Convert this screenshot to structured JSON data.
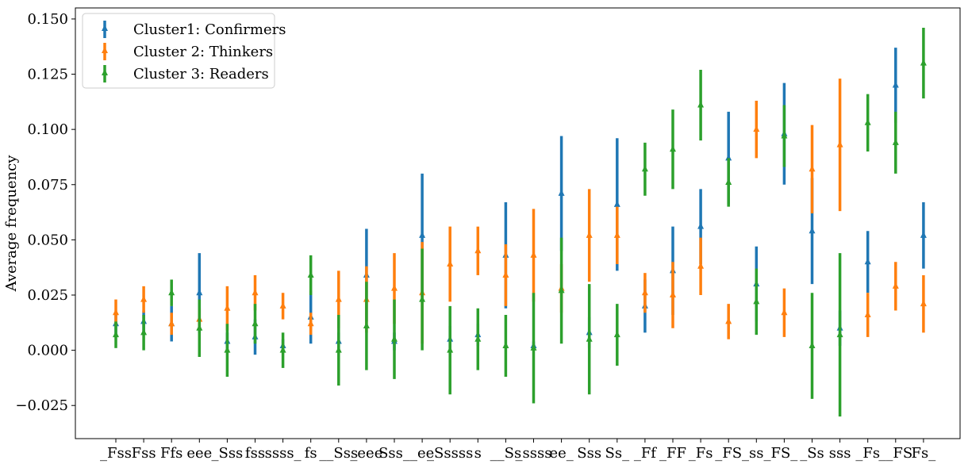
{
  "chart_data": {
    "type": "errorbar",
    "title": "",
    "xlabel": "",
    "ylabel": "Average frequency",
    "ylim": [
      -0.04,
      0.155
    ],
    "yticks": [
      -0.025,
      0.0,
      0.025,
      0.05,
      0.075,
      0.1,
      0.125,
      0.15
    ],
    "ytick_labels": [
      "−0.025",
      "0.000",
      "0.025",
      "0.050",
      "0.075",
      "0.100",
      "0.125",
      "0.150"
    ],
    "grid": false,
    "legend_position": "top-left",
    "categories": [
      "_Fss",
      "Fss",
      "Ffs",
      "eee_",
      "Sss",
      "fss",
      "ssss_",
      "fs__",
      "Sss_",
      "eee",
      "Sss_",
      "_ee",
      "_Ssss",
      "ss__",
      "Ss_",
      "ssss",
      "ee_",
      "Sss",
      "Ss_",
      "_Ff",
      "_FF",
      "_Fs_",
      "FS_",
      "ss_",
      "FS_",
      "_Ss",
      "sss",
      "_Fs__",
      "FS",
      "Fs_"
    ],
    "x_tick_labels": [
      "_Fss",
      "Fss",
      "Ffs",
      "eee",
      "_Sss",
      "fss",
      "ssss_",
      "fs",
      "__Sss",
      "_eee",
      "Sss_",
      "_ee",
      "_Sssss",
      "s",
      "__Ss",
      "_ssss",
      "ee_",
      "Sss",
      "Ss_",
      "_Ff",
      "_FF",
      "_Fs",
      "_FS",
      "_ss_",
      "FS_",
      "_Ss",
      "sss",
      "_Fs",
      "__FS",
      "Fs_"
    ],
    "series": [
      {
        "name": "Cluster1: Confirmers",
        "color": "#1f77b4",
        "values": [
          0.012,
          0.013,
          0.012,
          0.026,
          0.004,
          0.006,
          0.002,
          0.015,
          0.004,
          0.034,
          0.004,
          0.052,
          0.005,
          0.007,
          0.043,
          0.002,
          0.071,
          0.008,
          0.066,
          0.02,
          0.036,
          0.056,
          0.087,
          0.03,
          0.098,
          0.054,
          0.01,
          0.04,
          0.12,
          0.052
        ],
        "errors": [
          0.005,
          0.005,
          0.008,
          0.018,
          0.004,
          0.008,
          0.003,
          0.012,
          0.004,
          0.021,
          0.004,
          0.028,
          0.006,
          0.005,
          0.024,
          0.002,
          0.026,
          0.007,
          0.03,
          0.012,
          0.02,
          0.017,
          0.021,
          0.017,
          0.023,
          0.024,
          0.008,
          0.014,
          0.017,
          0.015
        ]
      },
      {
        "name": "Cluster 2: Thinkers",
        "color": "#ff7f0e",
        "values": [
          0.017,
          0.023,
          0.012,
          0.014,
          0.019,
          0.026,
          0.02,
          0.012,
          0.023,
          0.023,
          0.028,
          0.026,
          0.039,
          0.045,
          0.034,
          0.043,
          0.028,
          0.052,
          0.052,
          0.026,
          0.025,
          0.038,
          0.013,
          0.1,
          0.017,
          0.082,
          0.093,
          0.016,
          0.029,
          0.021
        ],
        "errors": [
          0.006,
          0.006,
          0.005,
          0.005,
          0.01,
          0.008,
          0.006,
          0.005,
          0.013,
          0.015,
          0.016,
          0.023,
          0.017,
          0.011,
          0.014,
          0.021,
          0.011,
          0.021,
          0.013,
          0.009,
          0.015,
          0.013,
          0.008,
          0.013,
          0.011,
          0.02,
          0.03,
          0.01,
          0.011,
          0.013
        ]
      },
      {
        "name": "Cluster 3: Readers",
        "color": "#2ca02c",
        "values": [
          0.007,
          0.008,
          0.026,
          0.01,
          0.0,
          0.012,
          0.0,
          0.034,
          0.0,
          0.011,
          0.005,
          0.023,
          0.0,
          0.005,
          0.002,
          0.001,
          0.027,
          0.005,
          0.007,
          0.082,
          0.091,
          0.111,
          0.076,
          0.022,
          0.097,
          0.002,
          0.007,
          0.103,
          0.094,
          0.13
        ],
        "errors": [
          0.006,
          0.008,
          0.006,
          0.013,
          0.012,
          0.009,
          0.008,
          0.009,
          0.016,
          0.02,
          0.018,
          0.023,
          0.02,
          0.014,
          0.014,
          0.025,
          0.024,
          0.025,
          0.014,
          0.012,
          0.018,
          0.016,
          0.011,
          0.015,
          0.014,
          0.024,
          0.037,
          0.013,
          0.014,
          0.016
        ]
      }
    ]
  }
}
